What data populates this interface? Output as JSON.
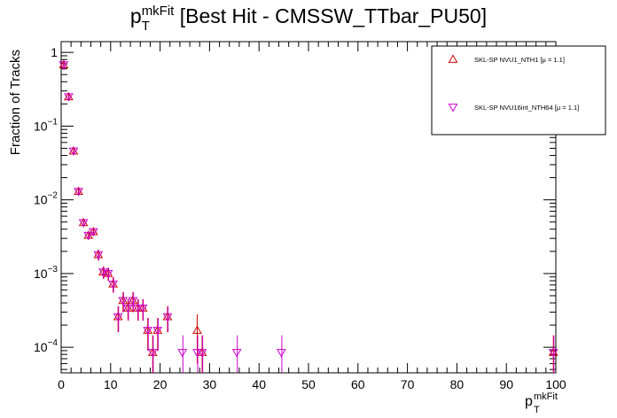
{
  "chart_data": {
    "type": "scatter",
    "title": {
      "base": "p",
      "sub": "T",
      "sup": "mkFit",
      "rest": " [Best Hit - CMSSW_TTbar_PU50]"
    },
    "xlabel": {
      "base": "p",
      "sub": "T",
      "sup": "mkFit"
    },
    "ylabel": "Fraction of Tracks",
    "xlim": [
      0,
      100
    ],
    "ylim": [
      4.5e-05,
      1.4
    ],
    "yscale": "log",
    "grid": false,
    "legend_position": "top-right",
    "x_ticks": [
      "0",
      "10",
      "20",
      "30",
      "40",
      "50",
      "60",
      "70",
      "80",
      "90",
      "100"
    ],
    "y_ticks": [
      {
        "value": 1,
        "base": "1",
        "exp": ""
      },
      {
        "value": 0.1,
        "base": "10",
        "exp": "−1"
      },
      {
        "value": 0.01,
        "base": "10",
        "exp": "−2"
      },
      {
        "value": 0.001,
        "base": "10",
        "exp": "−3"
      },
      {
        "value": 0.0001,
        "base": "10",
        "exp": "−4"
      }
    ],
    "series": [
      {
        "name": "SKL-SP NVU1_NTH1 [μ =  1.1]",
        "marker": "triangle-up",
        "color": "#cc0000",
        "points": [
          [
            0.5,
            0.68,
            0.1
          ],
          [
            1.5,
            0.25,
            0.03
          ],
          [
            2.5,
            0.046,
            0.005
          ],
          [
            3.5,
            0.013,
            0.0015
          ],
          [
            4.5,
            0.0049,
            0.0006
          ],
          [
            5.5,
            0.0033,
            0.0004
          ],
          [
            6.5,
            0.0037,
            0.00045
          ],
          [
            7.5,
            0.0018,
            0.0003
          ],
          [
            8.5,
            0.00105,
            0.0002
          ],
          [
            9.5,
            0.001,
            0.0002
          ],
          [
            10.5,
            0.00072,
            0.00017
          ],
          [
            11.5,
            0.00026,
            0.0001
          ],
          [
            12.5,
            0.00043,
            0.00013
          ],
          [
            13.5,
            0.00034,
            0.00011
          ],
          [
            14.5,
            0.00043,
            0.00013
          ],
          [
            15.5,
            0.00034,
            0.00011
          ],
          [
            16.5,
            0.00034,
            0.00011
          ],
          [
            17.5,
            0.00017,
            8e-05
          ],
          [
            18.5,
            8.5e-05,
            6e-05
          ],
          [
            19.5,
            0.00017,
            8e-05
          ],
          [
            21.5,
            0.00026,
            0.0001
          ],
          [
            27.5,
            0.00017,
            0.00011
          ],
          [
            28.5,
            8.5e-05,
            6e-05
          ],
          [
            99.5,
            8.5e-05,
            6e-05
          ]
        ]
      },
      {
        "name": "SKL-SP NVU16int_NTH64 [μ =  1.1]",
        "marker": "triangle-down",
        "color": "#cc00cc",
        "points": [
          [
            0.5,
            0.68,
            0.1
          ],
          [
            1.5,
            0.25,
            0.03
          ],
          [
            2.5,
            0.046,
            0.005
          ],
          [
            3.5,
            0.013,
            0.0015
          ],
          [
            4.5,
            0.0049,
            0.0006
          ],
          [
            5.5,
            0.0033,
            0.0004
          ],
          [
            6.5,
            0.0037,
            0.00045
          ],
          [
            7.5,
            0.0018,
            0.0003
          ],
          [
            8.5,
            0.00105,
            0.0002
          ],
          [
            9.5,
            0.001,
            0.0002
          ],
          [
            10.5,
            0.00072,
            0.00017
          ],
          [
            11.5,
            0.00026,
            0.0001
          ],
          [
            12.5,
            0.00043,
            0.00013
          ],
          [
            13.5,
            0.00034,
            0.00011
          ],
          [
            14.5,
            0.00043,
            0.00013
          ],
          [
            15.5,
            0.00034,
            0.00011
          ],
          [
            16.5,
            0.00034,
            0.00011
          ],
          [
            17.5,
            0.00017,
            8e-05
          ],
          [
            18.5,
            8.5e-05,
            6e-05
          ],
          [
            19.5,
            0.00017,
            8e-05
          ],
          [
            21.5,
            0.00026,
            0.0001
          ],
          [
            24.5,
            8.5e-05,
            6e-05
          ],
          [
            27.5,
            8.5e-05,
            6e-05
          ],
          [
            28.5,
            8.5e-05,
            6e-05
          ],
          [
            35.5,
            8.5e-05,
            6e-05
          ],
          [
            44.5,
            8.5e-05,
            6e-05
          ],
          [
            99.5,
            8.5e-05,
            6e-05
          ]
        ]
      }
    ]
  }
}
